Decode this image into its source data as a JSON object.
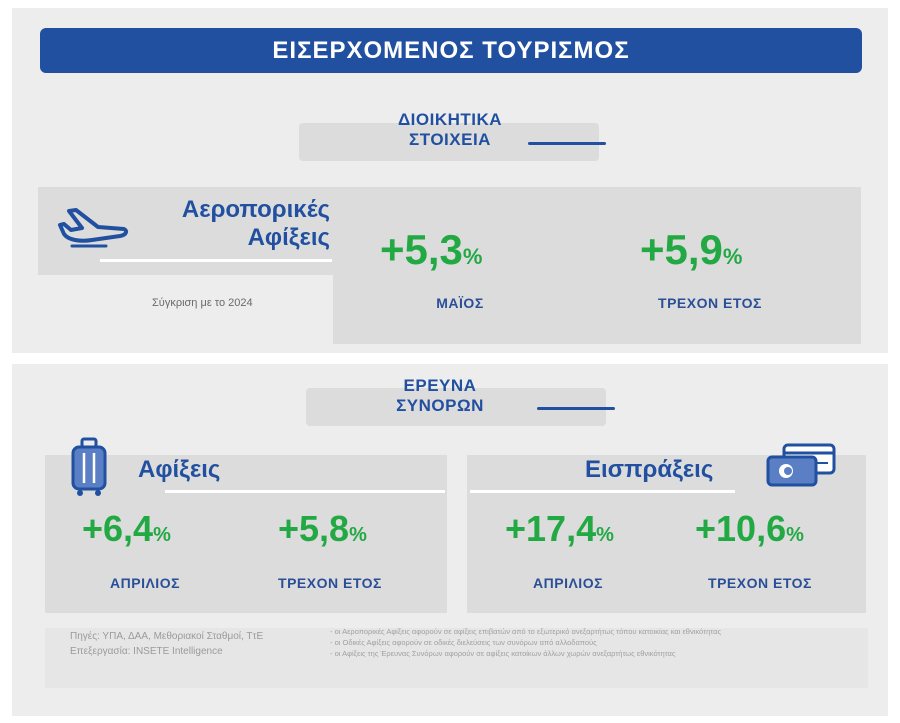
{
  "header": {
    "title": "ΕΙΣΕΡΧΟΜΕΝΟΣ ΤΟΥΡΙΣΜΟΣ"
  },
  "admin_section": {
    "label_line1": "ΔΙΟΙΚΗΤΙΚΑ",
    "label_line2": "ΣΤΟΙΧΕΙΑ",
    "card_title_line1": "Αεροπορικές",
    "card_title_line2": "Αφίξεις",
    "comparison_note": "Σύγκριση με το 2024",
    "stats": [
      {
        "value": "+5,3",
        "unit": "%",
        "period": "ΜΑΪΟΣ"
      },
      {
        "value": "+5,9",
        "unit": "%",
        "period": "ΤΡΕΧΟΝ ΕΤΟΣ"
      }
    ],
    "icon": "airplane-icon"
  },
  "survey_section": {
    "label_line1": "ΕΡΕΥΝΑ",
    "label_line2": "ΣΥΝΟΡΩΝ",
    "arrivals": {
      "title": "Αφίξεις",
      "icon": "luggage-icon",
      "stats": [
        {
          "value": "+6,4",
          "unit": "%",
          "period": "ΑΠΡΙΛΙΟΣ"
        },
        {
          "value": "+5,8",
          "unit": "%",
          "period": "ΤΡΕΧΟΝ ΕΤΟΣ"
        }
      ]
    },
    "receipts": {
      "title": "Εισπράξεις",
      "icon": "payment-card-icon",
      "stats": [
        {
          "value": "+17,4",
          "unit": "%",
          "period": "ΑΠΡΙΛΙΟΣ"
        },
        {
          "value": "+10,6",
          "unit": "%",
          "period": "ΤΡΕΧΟΝ ΕΤΟΣ"
        }
      ]
    }
  },
  "footer": {
    "sources": "Πηγές: ΥΠΑ, ΔΑΑ, Μεθοριακοί Σταθμοί, ΤτΕ",
    "processing": "Επεξεργασία: INSETE Intelligence",
    "notes": [
      "- οι Αεροπορικές Αφίξεις αφορούν σε αφίξεις επιβατών από το εξωτερικό ανεξαρτήτως τόπου κατοικίας και εθνικότητας",
      "- οι Οδικές Αφίξεις αφορούν σε οδικές διελεύσεις των συνόρων από αλλοδαπούς",
      "- οι Αφίξεις της Έρευνας Συνόρων αφορούν σε αφίξεις κατοίκων άλλων χωρών ανεξαρτήτως εθνικότητας"
    ]
  },
  "colors": {
    "brand_blue": "#2150a0",
    "positive_green": "#22a944",
    "panel_grey": "#ededed",
    "card_grey": "#dcdcdc"
  }
}
